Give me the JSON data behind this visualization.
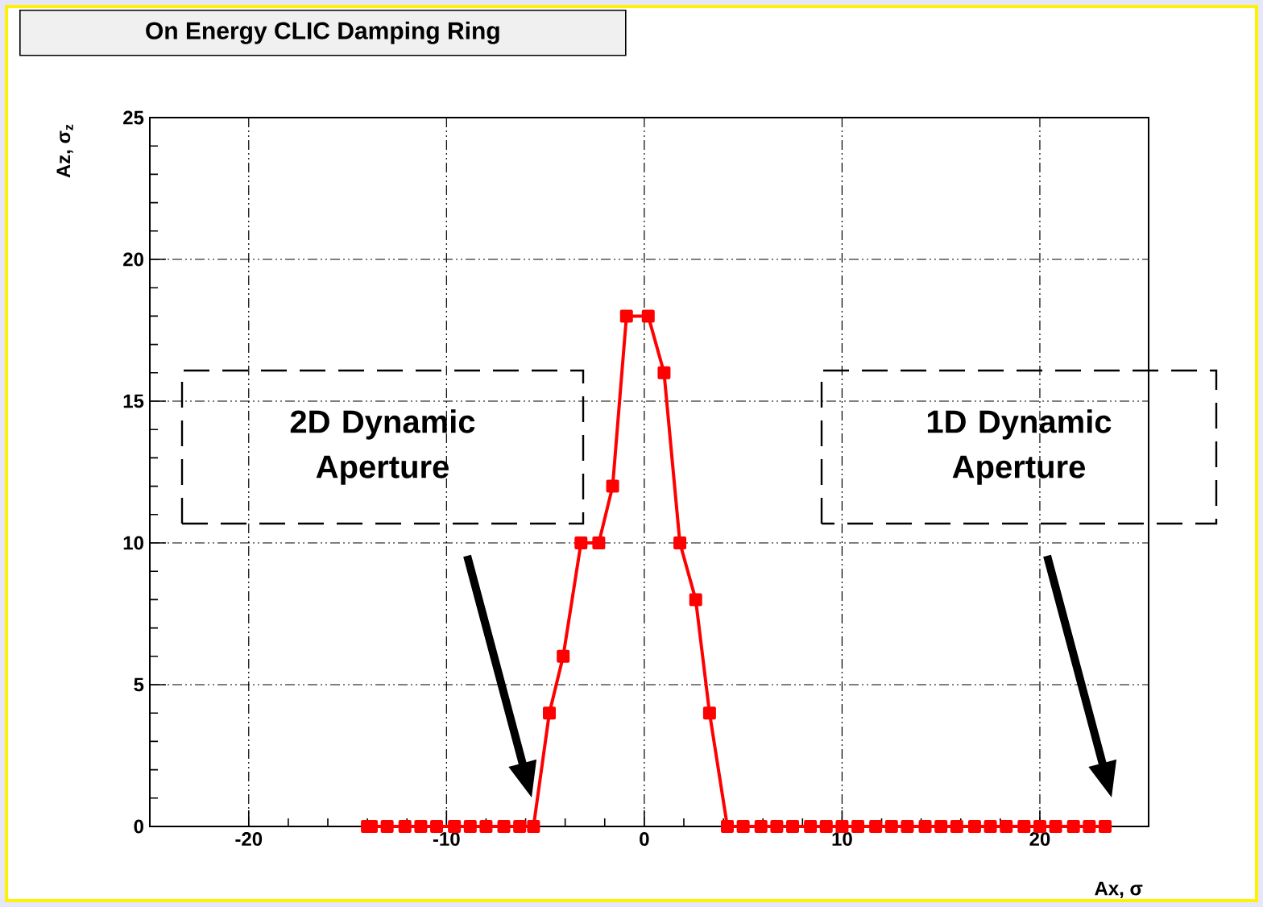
{
  "chart_data": {
    "type": "line",
    "title": "On Energy CLIC Damping Ring",
    "xlabel": "Ax, σ",
    "ylabel": "Az, σ$_{z}$",
    "x": [
      -14.0,
      -13.8,
      -13.0,
      -12.1,
      -11.3,
      -10.5,
      -9.6,
      -8.8,
      -8.0,
      -7.1,
      -6.3,
      -5.6,
      -4.8,
      -4.1,
      -3.2,
      -2.3,
      -1.6,
      -0.9,
      0.2,
      1.0,
      1.8,
      2.6,
      3.3,
      4.2,
      5.0,
      5.9,
      6.7,
      7.5,
      8.4,
      9.2,
      10.0,
      10.8,
      11.7,
      12.5,
      13.3,
      14.2,
      15.0,
      15.8,
      16.7,
      17.5,
      18.3,
      19.2,
      20.0,
      20.8,
      21.7,
      22.5,
      23.3
    ],
    "series": [
      {
        "color": "#ff0000",
        "values": [
          0,
          0,
          0,
          0,
          0,
          0,
          0,
          0,
          0,
          0,
          0,
          0,
          4,
          6,
          10,
          10,
          12,
          18,
          18,
          16,
          10,
          8,
          4,
          0,
          0,
          0,
          0,
          0,
          0,
          0,
          0,
          0,
          0,
          0,
          0,
          0,
          0,
          0,
          0,
          0,
          0,
          0,
          0,
          0,
          0,
          0,
          0
        ]
      }
    ],
    "xlim": [
      -25,
      25.5
    ],
    "ylim": [
      0,
      25
    ],
    "xticks": [
      -20,
      -10,
      0,
      10,
      20
    ],
    "yticks": [
      0,
      5,
      10,
      15,
      20,
      25
    ],
    "grid": true,
    "marker": "square",
    "line_style": "solid",
    "annotations": [
      "2D Dynamic Aperture",
      "1D Dynamic Aperture"
    ]
  }
}
